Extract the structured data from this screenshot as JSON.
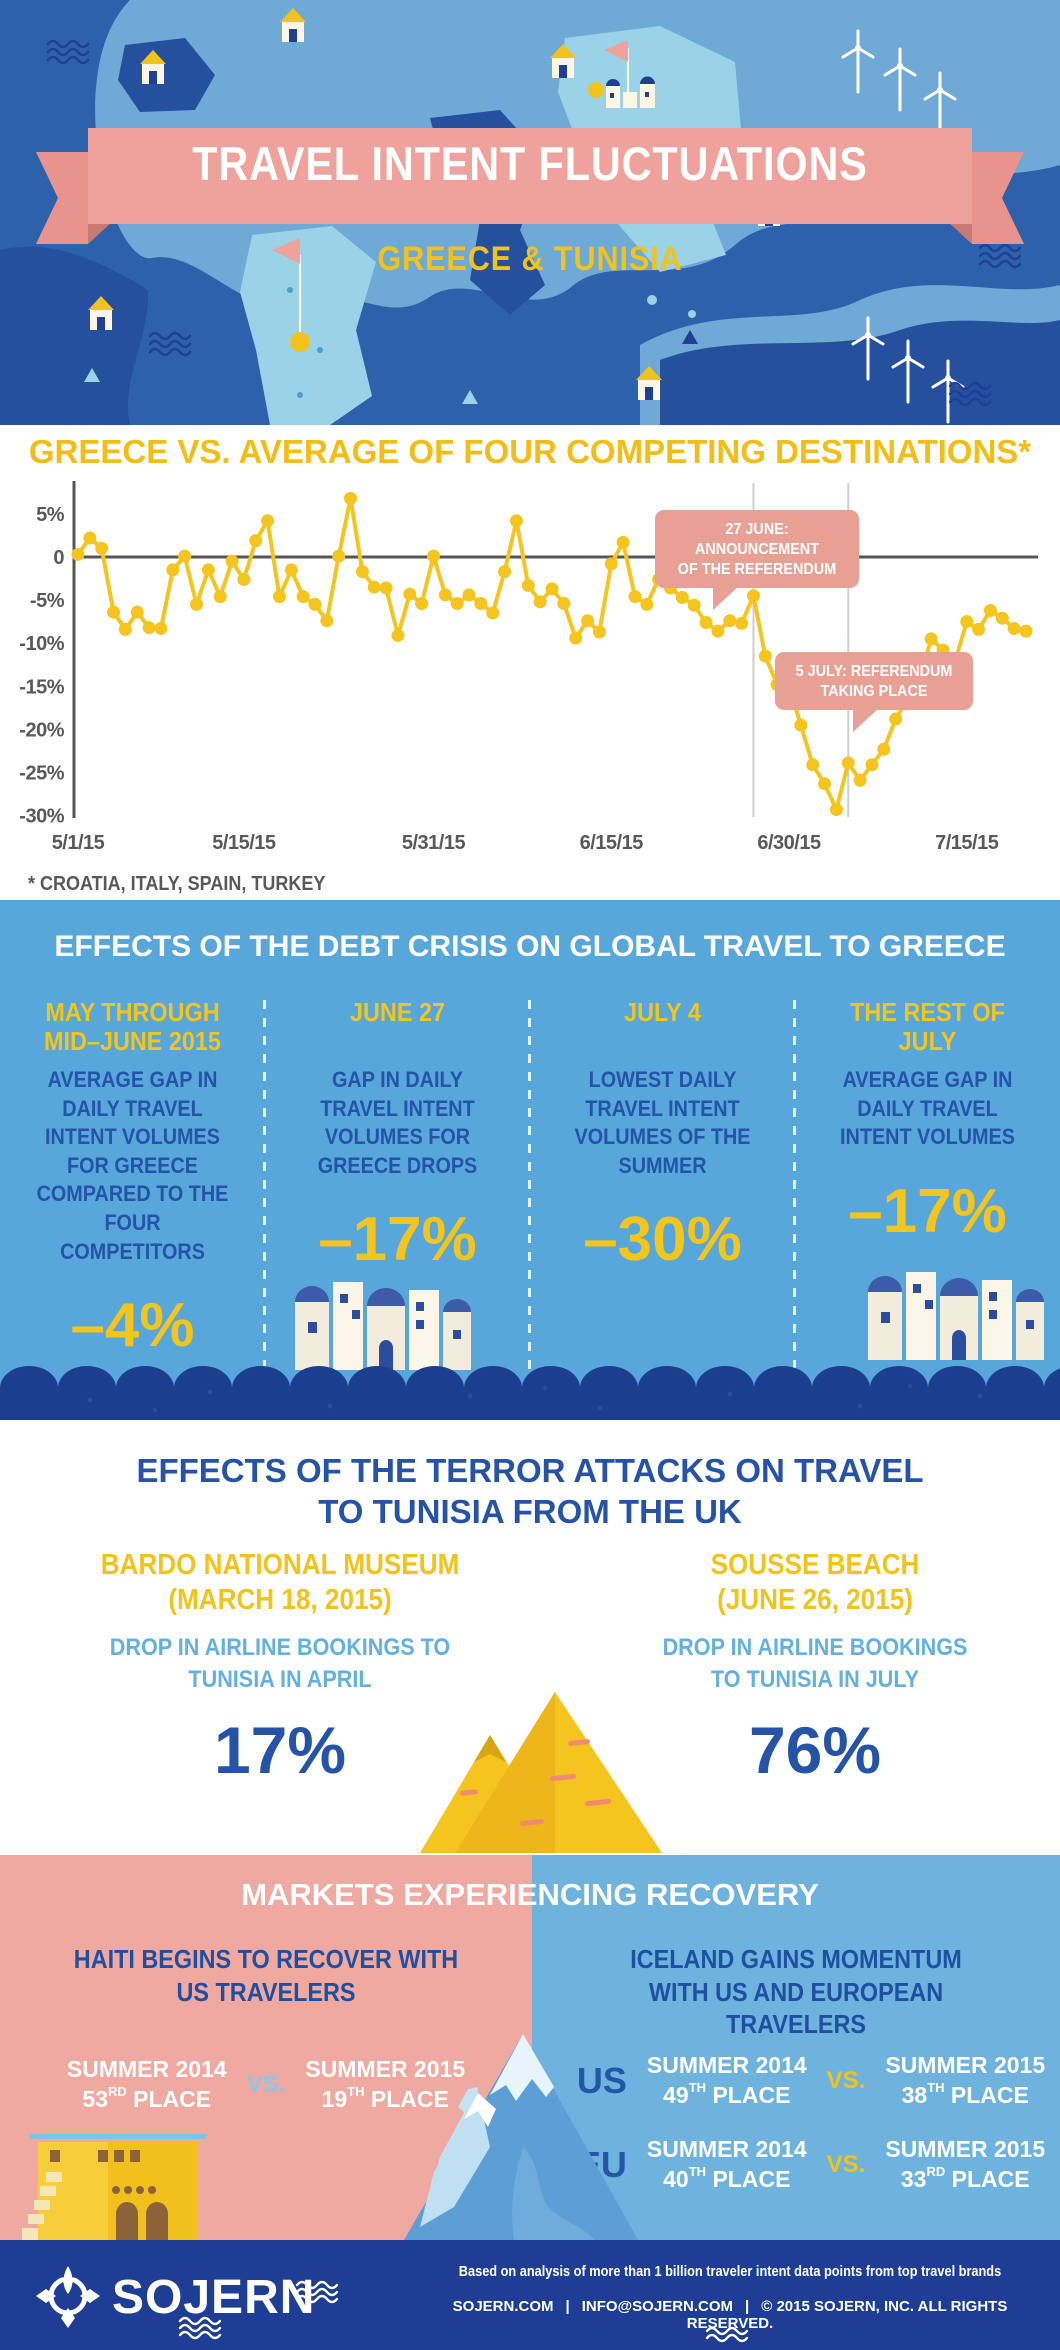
{
  "colors": {
    "sea_blue": "#2E61AB",
    "land_light": "#6FA9D5",
    "land_dark": "#24509E",
    "highlight_cyan": "#9AD2E7",
    "ribbon_pink": "#EFA29B",
    "callout_pink": "#E9A094",
    "accent_yellow": "#F3C21B",
    "line_yellow": "#F5C41E",
    "sky_section": "#57A7DB",
    "navy": "#1C3E8F",
    "dark_blue_text": "#2553A7",
    "light_blue_text": "#62B1E0",
    "recovery_pink": "#EFA9A1",
    "recovery_blue": "#6EB3DE",
    "footer_navy": "#1D3E94",
    "axis_gray": "#58595B"
  },
  "header": {
    "title": "TRAVEL INTENT FLUCTUATIONS",
    "subtitle": "GREECE & TUNISIA"
  },
  "chart_data": {
    "type": "line",
    "title": "GREECE VS. AVERAGE OF FOUR COMPETING DESTINATIONS*",
    "footnote": "* CROATIA, ITALY, SPAIN, TURKEY",
    "x_unit": "day",
    "x_start": "5/1/15",
    "x_ticks": [
      {
        "index": 0,
        "label": "5/1/15"
      },
      {
        "index": 14,
        "label": "5/15/15"
      },
      {
        "index": 30,
        "label": "5/31/15"
      },
      {
        "index": 45,
        "label": "6/15/15"
      },
      {
        "index": 60,
        "label": "6/30/15"
      },
      {
        "index": 75,
        "label": "7/15/15"
      }
    ],
    "y_ticks": [
      {
        "v": 5,
        "label": "5%"
      },
      {
        "v": 0,
        "label": "0"
      },
      {
        "v": -5,
        "label": "-5%"
      },
      {
        "v": -10,
        "label": "-10%"
      },
      {
        "v": -15,
        "label": "-15%"
      },
      {
        "v": -20,
        "label": "-20%"
      },
      {
        "v": -25,
        "label": "-25%"
      },
      {
        "v": -30,
        "label": "-30%"
      }
    ],
    "ylim": [
      -31.5,
      8.5
    ],
    "grid": false,
    "legend": "none",
    "series": [
      {
        "name": "Daily gap in travel intent volumes, Greece vs. competitor average (%)",
        "values": [
          0.3,
          2.2,
          1,
          -6.4,
          -8.4,
          -6.4,
          -8.2,
          -8.3,
          -1.5,
          0.1,
          -5.5,
          -1.5,
          -4.6,
          -0.5,
          -2.6,
          1.9,
          4.2,
          -4.6,
          -1.5,
          -4.6,
          -5.5,
          -7.4,
          0.1,
          6.8,
          -1.7,
          -3.5,
          -3.6,
          -9.1,
          -4.3,
          -5.4,
          0.1,
          -4.4,
          -5.4,
          -4.4,
          -5.4,
          -6.5,
          -1.7,
          4.2,
          -3.3,
          -5.2,
          -3.7,
          -5.4,
          -9.4,
          -7.4,
          -8.7,
          -0.8,
          1.7,
          -4.6,
          -5.5,
          -2.6,
          -3.6,
          -4.7,
          -5.6,
          -7.6,
          -8.6,
          -7.4,
          -7.7,
          -4.5,
          -11.5,
          -14.8,
          -15,
          -19.5,
          -24.1,
          -26.3,
          -29.3,
          -23.9,
          -25.9,
          -24.1,
          -22.3,
          -18.8,
          -16.5,
          -14.3,
          -9.5,
          -10.8,
          -12.2,
          -7.5,
          -8.4,
          -6.2,
          -7.1,
          -8.3,
          -8.6
        ]
      }
    ],
    "events": [
      {
        "index": 57,
        "lines": [
          "27 JUNE: ANNOUNCEMENT",
          "OF THE REFERENDUM"
        ]
      },
      {
        "index": 65,
        "lines": [
          "5 JULY: REFERENDUM",
          "TAKING PLACE"
        ]
      }
    ]
  },
  "debt": {
    "title": "EFFECTS OF THE DEBT CRISIS ON GLOBAL TRAVEL TO GREECE",
    "columns": [
      {
        "heading": "MAY THROUGH MID–JUNE 2015",
        "body": "AVERAGE GAP IN DAILY TRAVEL INTENT VOLUMES FOR GREECE COMPARED TO THE FOUR COMPETITORS",
        "value": "–4%"
      },
      {
        "heading": "JUNE 27",
        "body": "GAP IN DAILY TRAVEL INTENT VOLUMES FOR GREECE DROPS",
        "value": "–17%"
      },
      {
        "heading": "JULY 4",
        "body": "LOWEST DAILY TRAVEL INTENT VOLUMES OF THE SUMMER",
        "value": "–30%"
      },
      {
        "heading": "THE REST OF JULY",
        "body": "AVERAGE GAP IN DAILY TRAVEL INTENT VOLUMES",
        "value": "–17%"
      }
    ]
  },
  "tunisia": {
    "title_line1": "EFFECTS OF THE TERROR ATTACKS ON TRAVEL",
    "title_line2": "TO TUNISIA FROM THE UK",
    "columns": [
      {
        "name": "BARDO NATIONAL MUSEUM",
        "date": "(MARCH 18, 2015)",
        "body": "DROP IN AIRLINE BOOKINGS TO TUNISIA IN APRIL",
        "value": "17%"
      },
      {
        "name": "SOUSSE BEACH",
        "date": "(JUNE 26, 2015)",
        "body": "DROP IN AIRLINE BOOKINGS TO TUNISIA IN JULY",
        "value": "76%"
      }
    ]
  },
  "recovery": {
    "title": "MARKETS EXPERIENCING RECOVERY",
    "haiti": {
      "heading": "HAITI BEGINS TO RECOVER WITH US TRAVELERS",
      "before": {
        "season": "SUMMER 2014",
        "place_num": "53",
        "place_ord": "RD",
        "place_word": "PLACE"
      },
      "vs": "VS.",
      "after": {
        "season": "SUMMER 2015",
        "place_num": "19",
        "place_ord": "TH",
        "place_word": "PLACE"
      }
    },
    "iceland": {
      "heading": "ICELAND GAINS MOMENTUM WITH US AND EUROPEAN TRAVELERS",
      "rows": [
        {
          "market": "US",
          "before": {
            "season": "SUMMER 2014",
            "place_num": "49",
            "place_ord": "TH",
            "place_word": "PLACE"
          },
          "vs": "VS.",
          "after": {
            "season": "SUMMER 2015",
            "place_num": "38",
            "place_ord": "TH",
            "place_word": "PLACE"
          }
        },
        {
          "market": "EU",
          "before": {
            "season": "SUMMER 2014",
            "place_num": "40",
            "place_ord": "TH",
            "place_word": "PLACE"
          },
          "vs": "VS.",
          "after": {
            "season": "SUMMER 2015",
            "place_num": "33",
            "place_ord": "RD",
            "place_word": "PLACE"
          }
        }
      ]
    }
  },
  "footer": {
    "brand": "SOJERN",
    "line1": "Based on analysis of more than 1 billion traveler intent data points from top travel brands",
    "link1": "SOJERN.COM",
    "divider": "|",
    "link2": "INFO@SOJERN.COM",
    "copyright": "© 2015  SOJERN, INC. ALL RIGHTS RESERVED."
  }
}
